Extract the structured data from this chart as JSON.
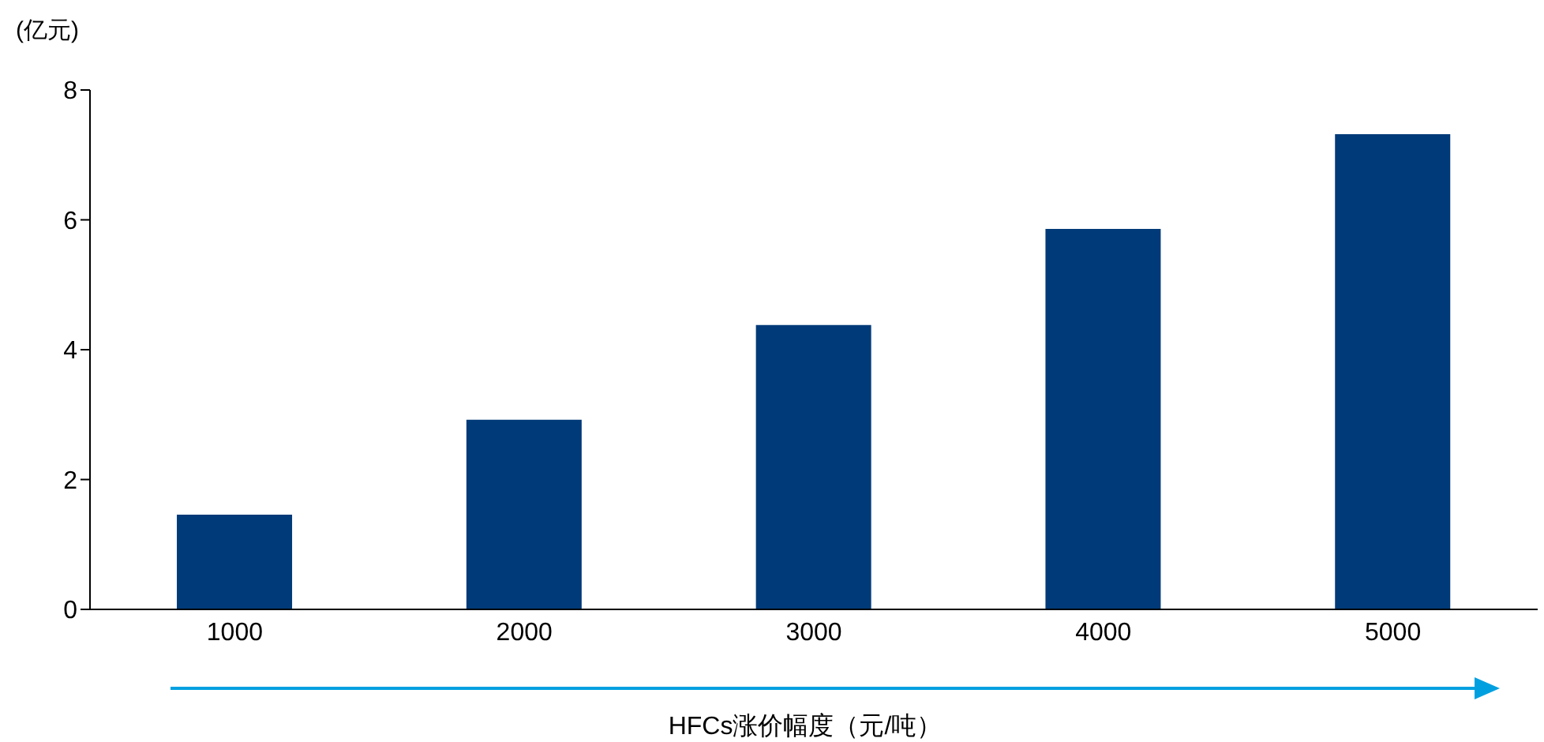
{
  "chart_data": {
    "type": "bar",
    "ylabel": "(亿元)",
    "xlabel": "HFCs涨价幅度（元/吨）",
    "categories": [
      "1000",
      "2000",
      "3000",
      "4000",
      "5000"
    ],
    "values": [
      1.46,
      2.92,
      4.38,
      5.86,
      7.32
    ],
    "color": "#003a78",
    "ylim": [
      0,
      8
    ],
    "yticks": [
      0,
      2,
      4,
      6,
      8
    ],
    "grid": false,
    "legend": false
  }
}
